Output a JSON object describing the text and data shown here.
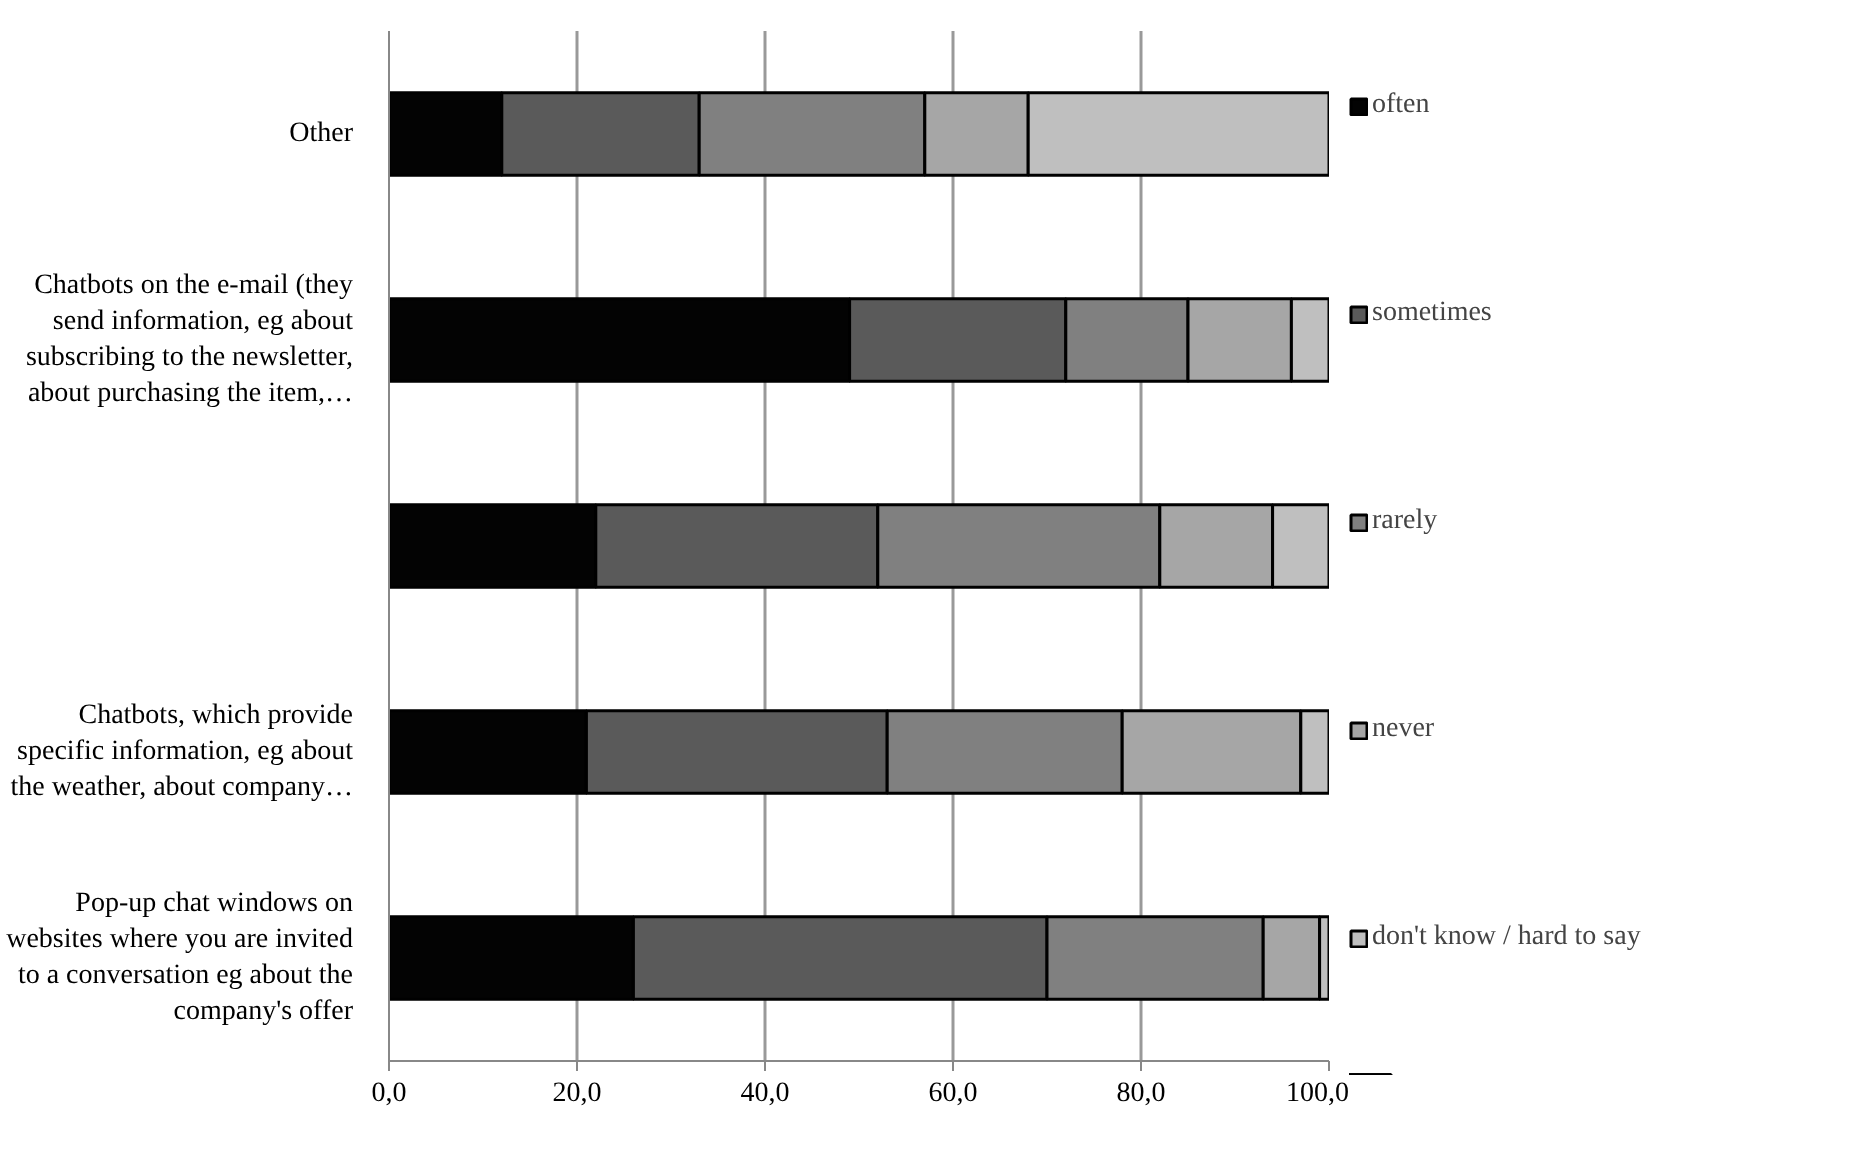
{
  "chart_data": {
    "type": "bar",
    "orientation": "horizontal",
    "stacked": true,
    "categories": [
      "Other",
      "Chatbots on the e-mail (they send information, eg about subscribing to the newsletter, about purchasing the item,…",
      null,
      "Chatbots, which provide specific information, eg about the weather, about company…",
      "Pop-up chat windows on websites where you are invited to a conversation eg about the company's offer"
    ],
    "series": [
      {
        "name": "often",
        "color": "#030303",
        "values": [
          12,
          49,
          22,
          21,
          26
        ]
      },
      {
        "name": "sometimes",
        "color": "#5a5a5a",
        "values": [
          21,
          23,
          30,
          32,
          44
        ]
      },
      {
        "name": "rarely",
        "color": "#808080",
        "values": [
          24,
          13,
          30,
          25,
          23
        ]
      },
      {
        "name": "never",
        "color": "#a6a6a6",
        "values": [
          11,
          11,
          12,
          19,
          6
        ]
      },
      {
        "name": "don't know / hard to say",
        "color": "#bfbfbf",
        "values": [
          32,
          4,
          6,
          3,
          1
        ]
      }
    ],
    "xlim": [
      0,
      100
    ],
    "xticks": [
      {
        "value": 0,
        "label": "0,0"
      },
      {
        "value": 20,
        "label": "20,0"
      },
      {
        "value": 40,
        "label": "40,0"
      },
      {
        "value": 60,
        "label": "60,0"
      },
      {
        "value": 80,
        "label": "80,0"
      },
      {
        "value": 100,
        "label": "100,0"
      }
    ],
    "grid": "x",
    "legend": "right"
  }
}
